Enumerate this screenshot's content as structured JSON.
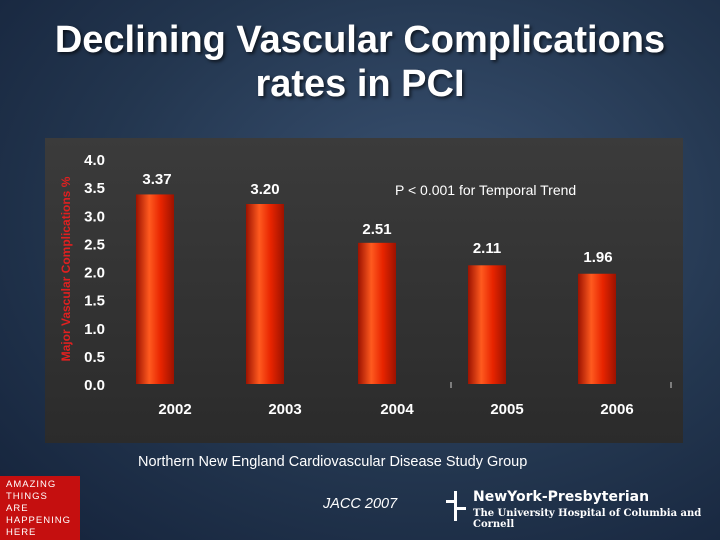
{
  "slide": {
    "title_line1": "Declining Vascular Complications",
    "title_line2": "rates in PCI",
    "source": "Northern New  England Cardiovascular Disease Study Group",
    "citation": "JACC 2007",
    "badge_lines": [
      "AMAZING",
      "THINGS",
      "ARE",
      "HAPPENING",
      "HERE"
    ],
    "logo_name": "NewYork-Presbyterian",
    "logo_subtitle": "The University Hospital of Columbia and Cornell"
  },
  "colors": {
    "bar_gradient": [
      "#ff5a1f",
      "#e82400",
      "#9c1200"
    ],
    "text": "#ffffff",
    "axis_label": "#e02020"
  },
  "chart_data": {
    "type": "bar",
    "categories": [
      "2002",
      "2003",
      "2004",
      "2005",
      "2006"
    ],
    "values": [
      3.37,
      3.2,
      2.51,
      2.11,
      1.96
    ],
    "value_labels": [
      "3.37",
      "3.20",
      "2.51",
      "2.11",
      "1.96"
    ],
    "ylabel": "Major Vascular Complications %",
    "ylim": [
      0,
      4
    ],
    "yticks": [
      "4.0",
      "3.5",
      "3.0",
      "2.5",
      "2.0",
      "1.5",
      "1.0",
      "0.5",
      "0.0"
    ],
    "annotation": "P < 0.001 for Temporal  Trend",
    "grid": false
  }
}
